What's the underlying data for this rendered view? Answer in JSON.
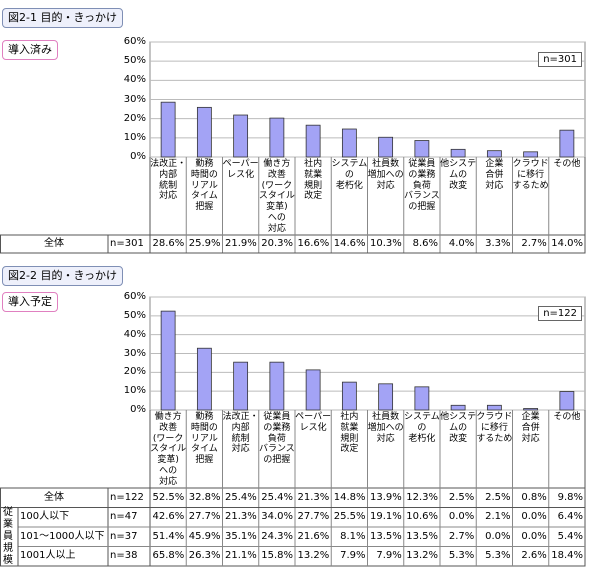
{
  "chart_data": [
    {
      "type": "bar",
      "title": "図2-1 目的・きっかけ",
      "panel": "導入済み",
      "n_label": "n=301",
      "categories": [
        "法改正・\n内部\n統制\n対応",
        "勤務\n時間の\nリアル\nタイム\n把握",
        "ペーパー\nレス化",
        "働き方\n改善\n(ワーク\nスタイル\n変革)\nへの\n対応",
        "社内\n就業\n規則\n改定",
        "システム\nの\n老朽化",
        "社員数\n増加への\n対応",
        "従業員\nの業務\n負荷\nバランス\nの把握",
        "他システ\nムの\n改変",
        "企業\n合併\n対応",
        "クラウド\nに移行\nするため",
        "その他"
      ],
      "values": [
        28.6,
        25.9,
        21.9,
        20.3,
        16.6,
        14.6,
        10.3,
        8.6,
        4.0,
        3.3,
        2.7,
        14.0
      ],
      "value_labels": [
        "28.6%",
        "25.9%",
        "21.9%",
        "20.3%",
        "16.6%",
        "14.6%",
        "10.3%",
        "8.6%",
        "4.0%",
        "3.3%",
        "2.7%",
        "14.0%"
      ],
      "total": {
        "name": "全体",
        "n": "n=301"
      },
      "color": "#a3a3f5",
      "ylim": [
        0,
        60
      ],
      "yticks": [
        {
          "value": 0,
          "label": "0%"
        },
        {
          "value": 10,
          "label": "10%"
        },
        {
          "value": 20,
          "label": "20%"
        },
        {
          "value": 30,
          "label": "30%"
        },
        {
          "value": 40,
          "label": "40%"
        },
        {
          "value": 50,
          "label": "50%"
        },
        {
          "value": 60,
          "label": "60%"
        }
      ],
      "grid": true
    },
    {
      "type": "bar",
      "title": "図2-2 目的・きっかけ",
      "panel": "導入予定",
      "n_label": "n=122",
      "categories": [
        "働き方\n改善\n(ワーク\nスタイル\n変革)\nへの\n対応",
        "勤務\n時間の\nリアル\nタイム\n把握",
        "法改正・\n内部\n統制\n対応",
        "従業員\nの業務\n負荷\nバランス\nの把握",
        "ペーパー\nレス化",
        "社内\n就業\n規則\n改定",
        "社員数\n増加への\n対応",
        "システム\nの\n老朽化",
        "他システ\nムの\n改変",
        "クラウド\nに移行\nするため",
        "企業\n合併\n対応",
        "その他"
      ],
      "values": [
        52.5,
        32.8,
        25.4,
        25.4,
        21.3,
        14.8,
        13.9,
        12.3,
        2.5,
        2.5,
        0.8,
        9.8
      ],
      "value_labels": [
        "52.5%",
        "32.8%",
        "25.4%",
        "25.4%",
        "21.3%",
        "14.8%",
        "13.9%",
        "12.3%",
        "2.5%",
        "2.5%",
        "0.8%",
        "9.8%"
      ],
      "total": {
        "name": "全体",
        "n": "n=122"
      },
      "group_label": "従業員規模",
      "rows": [
        {
          "name": "100人以下",
          "n": "n=47",
          "values": [
            "42.6%",
            "27.7%",
            "21.3%",
            "34.0%",
            "27.7%",
            "25.5%",
            "19.1%",
            "10.6%",
            "0.0%",
            "2.1%",
            "0.0%",
            "6.4%"
          ]
        },
        {
          "name": "101～1000人以下",
          "n": "n=37",
          "values": [
            "51.4%",
            "45.9%",
            "35.1%",
            "24.3%",
            "21.6%",
            "8.1%",
            "13.5%",
            "13.5%",
            "2.7%",
            "0.0%",
            "0.0%",
            "5.4%"
          ]
        },
        {
          "name": "1001人以上",
          "n": "n=38",
          "values": [
            "65.8%",
            "26.3%",
            "21.1%",
            "15.8%",
            "13.2%",
            "7.9%",
            "7.9%",
            "13.2%",
            "5.3%",
            "5.3%",
            "2.6%",
            "18.4%"
          ]
        }
      ],
      "color": "#a3a3f5",
      "ylim": [
        0,
        60
      ],
      "yticks": [
        {
          "value": 0,
          "label": "0%"
        },
        {
          "value": 10,
          "label": "10%"
        },
        {
          "value": 20,
          "label": "20%"
        },
        {
          "value": 30,
          "label": "30%"
        },
        {
          "value": 40,
          "label": "40%"
        },
        {
          "value": 50,
          "label": "50%"
        },
        {
          "value": 60,
          "label": "60%"
        }
      ],
      "grid": true
    }
  ]
}
